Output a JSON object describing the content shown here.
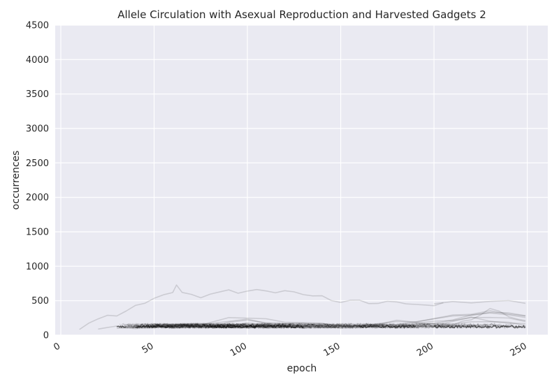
{
  "chart_data": {
    "type": "line",
    "title": "Allele Circulation with Asexual Reproduction and Harvested Gadgets 2",
    "xlabel": "epoch",
    "ylabel": "occurrences",
    "xlim": [
      -3,
      261
    ],
    "ylim": [
      0,
      4500
    ],
    "xticks": [
      0,
      50,
      100,
      150,
      200,
      250
    ],
    "yticks": [
      0,
      500,
      1000,
      1500,
      2000,
      2500,
      3000,
      3500,
      4000,
      4500
    ],
    "xtick_labels": [
      "0",
      "50",
      "100",
      "150",
      "200",
      "250"
    ],
    "ytick_labels": [
      "0",
      "500",
      "1000",
      "1500",
      "2000",
      "2500",
      "3000",
      "3500",
      "4000",
      "4500"
    ],
    "grid": true,
    "legend": "none",
    "colors": {
      "background": "#eaeaf2",
      "grid": "#ffffff",
      "line": "#000000",
      "text": "#262626"
    },
    "series": [
      {
        "x": [
          10,
          15,
          20,
          25,
          30,
          35,
          40,
          45,
          50,
          55,
          60,
          62,
          65,
          70,
          75,
          80,
          85,
          90,
          95,
          100,
          105,
          110,
          115,
          120,
          125,
          130,
          135,
          140,
          145,
          150,
          155,
          160,
          165,
          170,
          175,
          180,
          185,
          190,
          195,
          200,
          205
        ],
        "values": [
          100,
          180,
          230,
          270,
          290,
          350,
          420,
          480,
          540,
          580,
          600,
          740,
          620,
          580,
          560,
          600,
          620,
          640,
          620,
          640,
          650,
          660,
          620,
          640,
          610,
          600,
          570,
          560,
          520,
          480,
          500,
          490,
          470,
          460,
          480,
          500,
          460,
          440,
          420,
          440,
          470
        ]
      },
      {
        "x": [
          200,
          210,
          220,
          230,
          240,
          249
        ],
        "values": [
          450,
          470,
          480,
          490,
          490,
          480
        ]
      },
      {
        "x": [
          20,
          25,
          30,
          40,
          50,
          60,
          70,
          80,
          90,
          100,
          110,
          120,
          130,
          140,
          150,
          160,
          170,
          180,
          190,
          200,
          210,
          220,
          230,
          240,
          249
        ],
        "values": [
          100,
          110,
          120,
          130,
          140,
          135,
          150,
          180,
          200,
          220,
          190,
          170,
          160,
          150,
          140,
          135,
          150,
          170,
          200,
          230,
          260,
          300,
          330,
          310,
          300
        ]
      },
      {
        "x": [
          75,
          80,
          90,
          100,
          110,
          120,
          130,
          140,
          150,
          160,
          170,
          180,
          190,
          200,
          210,
          220,
          230,
          240,
          249
        ],
        "values": [
          130,
          200,
          260,
          240,
          220,
          200,
          180,
          160,
          150,
          140,
          160,
          180,
          200,
          240,
          280,
          320,
          360,
          300,
          260
        ]
      },
      {
        "x": [
          80,
          90,
          100,
          110,
          120,
          130,
          140,
          150,
          160,
          170,
          180,
          190,
          200,
          210,
          220,
          230,
          240,
          249
        ],
        "values": [
          120,
          180,
          200,
          190,
          170,
          160,
          150,
          140,
          130,
          140,
          150,
          170,
          190,
          230,
          260,
          250,
          230,
          210
        ]
      },
      {
        "x": [
          190,
          200,
          210,
          220,
          230,
          240,
          249
        ],
        "values": [
          150,
          180,
          220,
          280,
          340,
          300,
          250
        ]
      },
      {
        "x": [
          210,
          215,
          220,
          225,
          230,
          235,
          240,
          245,
          249
        ],
        "values": [
          140,
          190,
          240,
          300,
          380,
          330,
          280,
          230,
          200
        ]
      },
      {
        "x": [
          160,
          170,
          180,
          190,
          200,
          210,
          220,
          230,
          240,
          249
        ],
        "values": [
          120,
          160,
          210,
          170,
          150,
          200,
          250,
          220,
          180,
          160
        ]
      },
      {
        "x": [
          90,
          100,
          110,
          120,
          130,
          140,
          150,
          160,
          170,
          180,
          190,
          200,
          210,
          220,
          230,
          240,
          249
        ],
        "values": [
          130,
          160,
          150,
          140,
          130,
          125,
          120,
          125,
          130,
          140,
          150,
          160,
          180,
          200,
          190,
          170,
          150
        ]
      },
      {
        "x": [
          30,
          40,
          50,
          60,
          70,
          80,
          90,
          100,
          110,
          120,
          130,
          140,
          150,
          160,
          170,
          180,
          190,
          200,
          210,
          220,
          230,
          240,
          249
        ],
        "values": [
          110,
          115,
          120,
          118,
          122,
          125,
          130,
          128,
          125,
          122,
          120,
          118,
          116,
          118,
          120,
          125,
          130,
          135,
          140,
          138,
          135,
          130,
          128
        ]
      },
      {
        "x": [
          30,
          40,
          50,
          60,
          70,
          80,
          90,
          100,
          110,
          120,
          130,
          140,
          150,
          160,
          170,
          180,
          190,
          200,
          210,
          220,
          230,
          240,
          249
        ],
        "values": [
          105,
          112,
          116,
          114,
          116,
          120,
          124,
          122,
          120,
          118,
          116,
          114,
          112,
          114,
          118,
          122,
          125,
          128,
          130,
          128,
          126,
          124,
          122
        ]
      }
    ]
  }
}
